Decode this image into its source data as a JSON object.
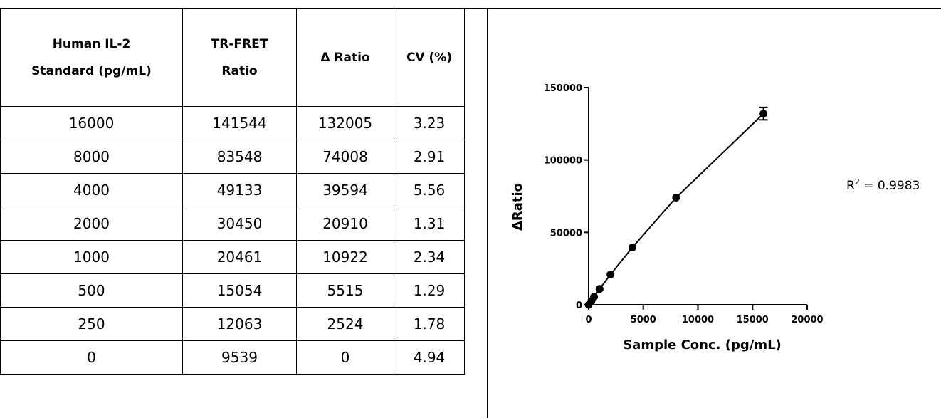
{
  "table": {
    "headers": [
      "Human IL-2\nStandard (pg/mL)",
      "TR-FRET\nRatio",
      "Δ Ratio",
      "CV (%)"
    ],
    "rows": [
      [
        "16000",
        "141544",
        "132005",
        "3.23"
      ],
      [
        "8000",
        "83548",
        "74008",
        "2.91"
      ],
      [
        "4000",
        "49133",
        "39594",
        "5.56"
      ],
      [
        "2000",
        "30450",
        "20910",
        "1.31"
      ],
      [
        "1000",
        "20461",
        "10922",
        "2.34"
      ],
      [
        "500",
        "15054",
        "5515",
        "1.29"
      ],
      [
        "250",
        "12063",
        "2524",
        "1.78"
      ],
      [
        "0",
        "9539",
        "0",
        "4.94"
      ]
    ]
  },
  "chart_data": {
    "type": "scatter",
    "title": "",
    "xlabel": "Sample Conc. (pg/mL)",
    "ylabel": "ΔRatio",
    "xlim": [
      0,
      20000
    ],
    "ylim": [
      0,
      150000
    ],
    "x_ticks": [
      "0",
      "5000",
      "10000",
      "15000",
      "20000"
    ],
    "y_ticks": [
      "0",
      "50000",
      "100000",
      "150000"
    ],
    "grid": false,
    "fit_line": true,
    "r2_label": "R",
    "r2_sup": "2",
    "r2_value": " = 0.9983",
    "series": [
      {
        "x": [
          0,
          250,
          500,
          1000,
          2000,
          4000,
          8000,
          16000
        ],
        "y": [
          0,
          2524,
          5515,
          10922,
          20910,
          39594,
          74008,
          132005
        ],
        "error": [
          0,
          0,
          0,
          0,
          0,
          0,
          0,
          4300
        ]
      }
    ]
  }
}
